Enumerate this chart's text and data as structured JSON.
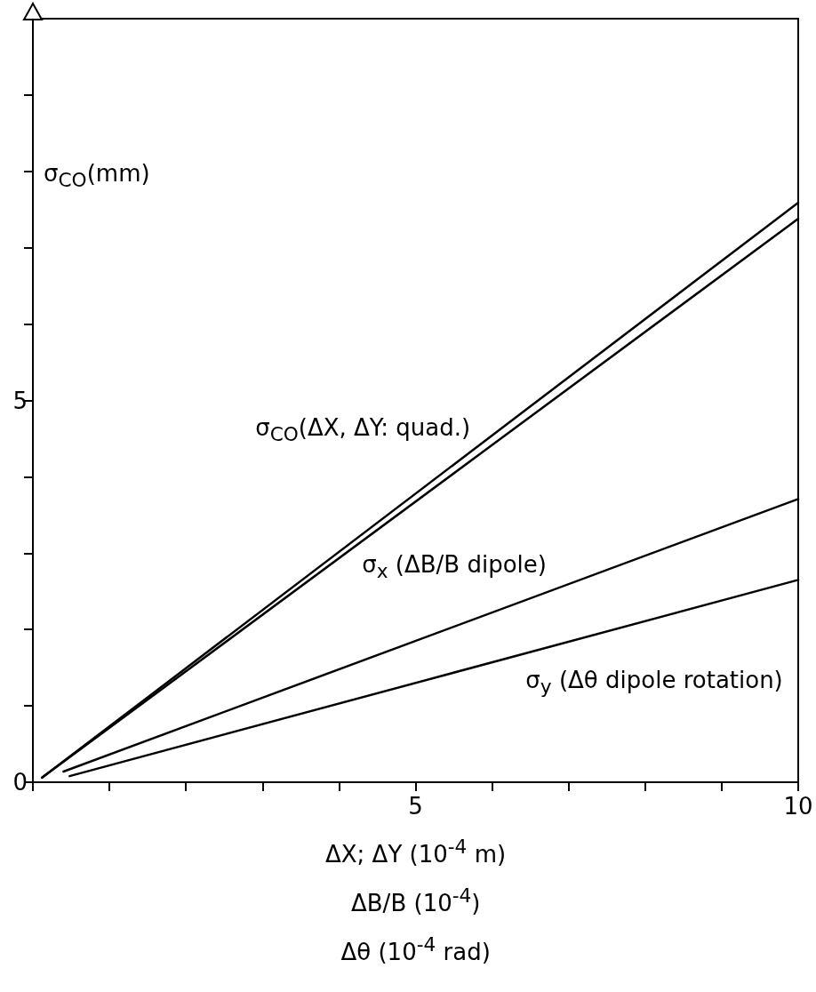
{
  "chart_data": {
    "type": "line",
    "xlabel": "ΔX; ΔY (10$^{-4}$ m)\nΔB/B (10$^{-4}$)\nΔθ (10$^{-4}$ rad)",
    "ylabel": "σ$_{CO}$(mm)",
    "xlim": [
      0,
      10
    ],
    "ylim": [
      0,
      10
    ],
    "xticks": [
      {
        "value": 0,
        "label": null
      },
      {
        "value": 1,
        "label": null
      },
      {
        "value": 2,
        "label": null
      },
      {
        "value": 3,
        "label": null
      },
      {
        "value": 4,
        "label": null
      },
      5,
      {
        "value": 6,
        "label": null
      },
      {
        "value": 7,
        "label": null
      },
      {
        "value": 8,
        "label": null
      },
      {
        "value": 9,
        "label": null
      },
      10
    ],
    "yticks": [
      0,
      {
        "value": 1,
        "label": null
      },
      {
        "value": 2,
        "label": null
      },
      {
        "value": 3,
        "label": null
      },
      {
        "value": 4,
        "label": null
      },
      5,
      {
        "value": 6,
        "label": null
      },
      {
        "value": 7,
        "label": null
      },
      {
        "value": 8,
        "label": null
      },
      {
        "value": 9,
        "label": null
      },
      {
        "value": 10,
        "label": null
      }
    ],
    "grid": false,
    "legend": false,
    "marker": "none",
    "line_style": "solid",
    "series": [
      {
        "name": "σ$_{CO}$(ΔX, ΔY: quad.)",
        "color": "#000000",
        "x": [
          0.12,
          10
        ],
        "values": [
          0.06,
          7.59
        ]
      },
      {
        "color": "#000000",
        "x": [
          0.12,
          10
        ],
        "values": [
          0.06,
          7.38
        ]
      },
      {
        "name": "σ$_{x}$ (ΔB/B dipole)",
        "color": "#000000",
        "x": [
          0.4,
          10
        ],
        "values": [
          0.14,
          3.71
        ]
      },
      {
        "name": "σ$_{y}$ (Δθ dipole rotation)",
        "color": "#000000",
        "x": [
          0.48,
          10
        ],
        "values": [
          0.08,
          2.65
        ]
      }
    ]
  }
}
